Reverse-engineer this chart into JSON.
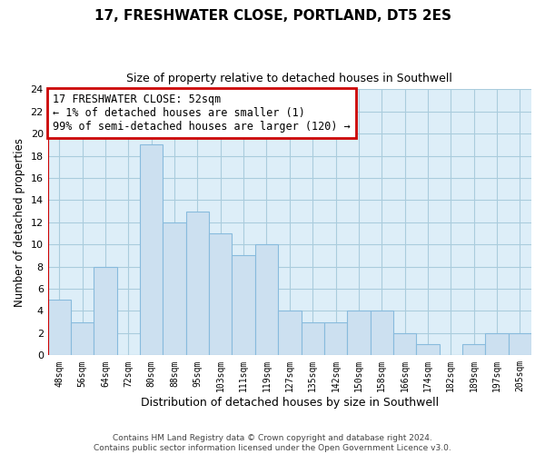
{
  "title": "17, FRESHWATER CLOSE, PORTLAND, DT5 2ES",
  "subtitle": "Size of property relative to detached houses in Southwell",
  "xlabel": "Distribution of detached houses by size in Southwell",
  "ylabel": "Number of detached properties",
  "bin_labels": [
    "48sqm",
    "56sqm",
    "64sqm",
    "72sqm",
    "80sqm",
    "88sqm",
    "95sqm",
    "103sqm",
    "111sqm",
    "119sqm",
    "127sqm",
    "135sqm",
    "142sqm",
    "150sqm",
    "158sqm",
    "166sqm",
    "174sqm",
    "182sqm",
    "189sqm",
    "197sqm",
    "205sqm"
  ],
  "bar_heights": [
    5,
    3,
    8,
    0,
    19,
    12,
    13,
    11,
    9,
    10,
    4,
    3,
    3,
    4,
    4,
    2,
    1,
    0,
    1,
    2,
    2
  ],
  "bar_color": "#cce0f0",
  "bar_edge_color": "#88bbdd",
  "ax_bg_color": "#ddeef8",
  "ylim": [
    0,
    24
  ],
  "yticks": [
    0,
    2,
    4,
    6,
    8,
    10,
    12,
    14,
    16,
    18,
    20,
    22,
    24
  ],
  "annotation_line1": "17 FRESHWATER CLOSE: 52sqm",
  "annotation_line2": "← 1% of detached houses are smaller (1)",
  "annotation_line3": "99% of semi-detached houses are larger (120) →",
  "annotation_box_color": "#ffffff",
  "annotation_box_edge_color": "#cc0000",
  "red_line_x": -0.5,
  "footer_line1": "Contains HM Land Registry data © Crown copyright and database right 2024.",
  "footer_line2": "Contains public sector information licensed under the Open Government Licence v3.0.",
  "bg_color": "#ffffff",
  "grid_color": "#aaccdd"
}
